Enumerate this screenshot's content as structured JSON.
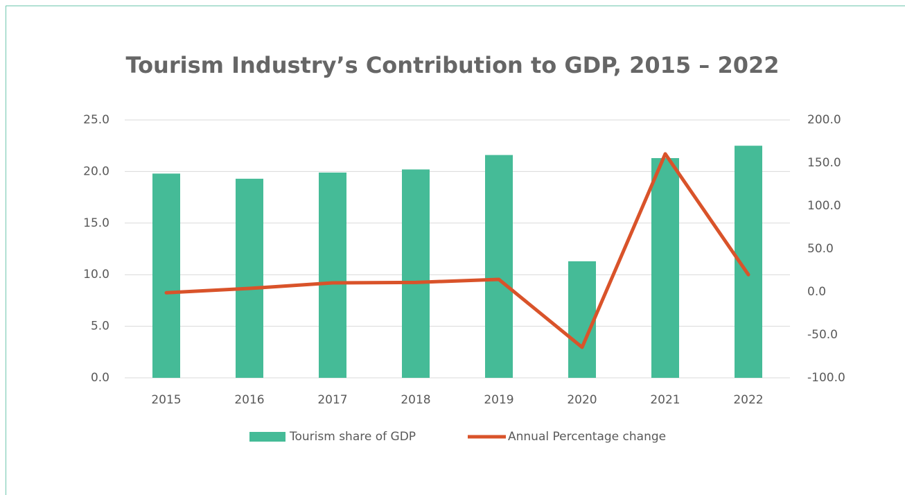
{
  "chart_data": {
    "type": "bar-line",
    "title": "Tourism Industry’s Contribution to GDP, 2015 – 2022",
    "categories": [
      "2015",
      "2016",
      "2017",
      "2018",
      "2019",
      "2020",
      "2021",
      "2022"
    ],
    "series": [
      {
        "name": "Tourism share of GDP",
        "type": "bar",
        "color": "#45bb97",
        "axis": "y",
        "values": [
          19.8,
          19.3,
          19.9,
          20.2,
          21.6,
          11.3,
          21.3,
          22.5
        ]
      },
      {
        "name": "Annual Percentage change",
        "type": "line",
        "color": "#d9532a",
        "axis": "y2",
        "values": [
          -1,
          4,
          10.5,
          11,
          14.5,
          -64.5,
          160.5,
          20
        ]
      }
    ],
    "ylim": [
      0,
      25
    ],
    "yticks": [
      {
        "value": 0,
        "label": "0.0"
      },
      {
        "value": 5,
        "label": "5.0"
      },
      {
        "value": 10,
        "label": "10.0"
      },
      {
        "value": 15,
        "label": "15.0"
      },
      {
        "value": 20,
        "label": "20.0"
      },
      {
        "value": 25,
        "label": "25.0"
      }
    ],
    "y2lim": [
      -100,
      200
    ],
    "y2ticks": [
      {
        "value": -100,
        "label": "-100.0"
      },
      {
        "value": -50,
        "label": "-50.0"
      },
      {
        "value": 0,
        "label": "0.0"
      },
      {
        "value": 50,
        "label": "50.0"
      },
      {
        "value": 100,
        "label": "100.0"
      },
      {
        "value": 150,
        "label": "150.0"
      },
      {
        "value": 200,
        "label": "200.0"
      }
    ],
    "grid": true,
    "legend": "bottom"
  }
}
